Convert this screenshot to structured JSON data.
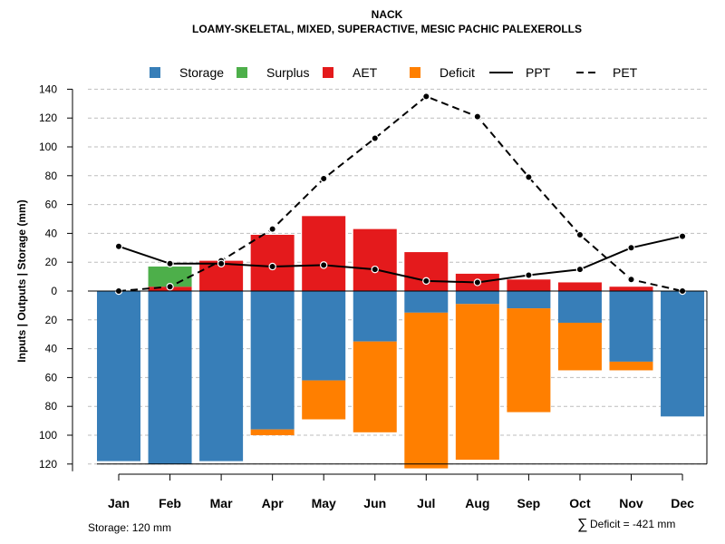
{
  "chart_data": {
    "type": "bar",
    "title": "NACK",
    "subtitle": "LOAMY-SKELETAL, MIXED, SUPERACTIVE, MESIC PACHIC PALEXEROLLS",
    "ylabel": "Inputs | Outputs | Storage    (mm)",
    "ylim": [
      -125,
      140
    ],
    "yticks": [
      140,
      120,
      100,
      80,
      60,
      40,
      20,
      0,
      -20,
      -40,
      -60,
      -80,
      -100,
      -120
    ],
    "ytick_labels": [
      "140",
      "120",
      "100",
      "80",
      "60",
      "40",
      "20",
      "0",
      "20",
      "40",
      "60",
      "80",
      "100",
      "120"
    ],
    "categories": [
      "Jan",
      "Feb",
      "Mar",
      "Apr",
      "May",
      "Jun",
      "Jul",
      "Aug",
      "Sep",
      "Oct",
      "Nov",
      "Dec"
    ],
    "legend": [
      {
        "name": "Storage",
        "kind": "box",
        "color": "#377EB8"
      },
      {
        "name": "Surplus",
        "kind": "box",
        "color": "#4DAF4A"
      },
      {
        "name": "AET",
        "kind": "box",
        "color": "#E41A1C"
      },
      {
        "name": "Deficit",
        "kind": "box",
        "color": "#FF7F00"
      },
      {
        "name": "PPT",
        "kind": "solid",
        "color": "#000000"
      },
      {
        "name": "PET",
        "kind": "dashed",
        "color": "#000000"
      }
    ],
    "series": [
      {
        "name": "Storage",
        "values": [
          118,
          120,
          118,
          96,
          62,
          35,
          15,
          9,
          12,
          22,
          49,
          87
        ]
      },
      {
        "name": "Surplus",
        "values": [
          0,
          14,
          0,
          0,
          0,
          0,
          0,
          0,
          0,
          0,
          0,
          0
        ]
      },
      {
        "name": "AET",
        "values": [
          0,
          3,
          21,
          39,
          52,
          43,
          27,
          12,
          8,
          6,
          3,
          0
        ]
      },
      {
        "name": "Deficit",
        "values": [
          0,
          0,
          0,
          4,
          27,
          63,
          108,
          108,
          72,
          33,
          6,
          0
        ]
      },
      {
        "name": "PPT",
        "values": [
          31,
          19,
          19,
          17,
          18,
          15,
          7,
          6,
          11,
          15,
          30,
          38
        ]
      },
      {
        "name": "PET",
        "values": [
          0,
          3,
          21,
          43,
          78,
          106,
          135,
          121,
          79,
          39,
          8,
          0
        ]
      }
    ],
    "colors": {
      "storage": "#377EB8",
      "surplus": "#4DAF4A",
      "aet": "#E41A1C",
      "deficit": "#FF7F00",
      "grid": "#BEBEBE"
    },
    "notes": {
      "storage": "Storage: 120 mm",
      "deficit_symbol": "∑",
      "deficit": "Deficit = -421 mm"
    }
  }
}
